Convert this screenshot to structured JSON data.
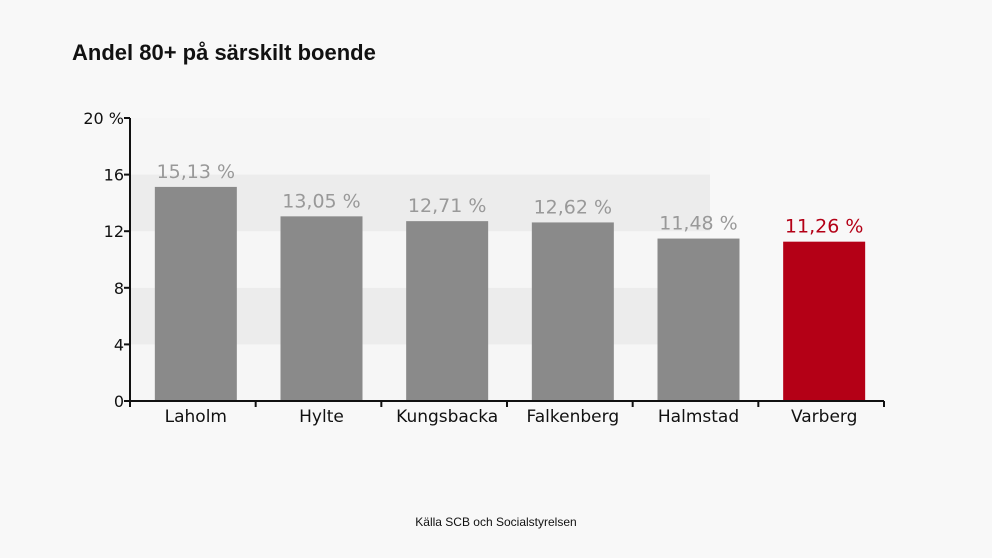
{
  "chart_data": {
    "type": "bar",
    "title": "Andel 80+ på särskilt boende",
    "categories": [
      "Laholm",
      "Hylte",
      "Kungsbacka",
      "Falkenberg",
      "Halmstad",
      "Varberg"
    ],
    "values": [
      15.13,
      13.05,
      12.71,
      12.62,
      11.48,
      11.26
    ],
    "data_labels": [
      "15,13 %",
      "13,05 %",
      "12,71 %",
      "12,62 %",
      "11,48 %",
      "11,26 %"
    ],
    "highlight_index": 5,
    "y_ticks": [
      "0",
      "4",
      "8",
      "12",
      "16",
      "20 %"
    ],
    "y_tick_values": [
      0,
      4,
      8,
      12,
      16,
      20
    ],
    "ylim": [
      0,
      20
    ],
    "xlabel": "",
    "ylabel": "",
    "grid": "alternating bands",
    "legend": "none",
    "colors": {
      "bar": "#8a8a8a",
      "bar_label": "#999999",
      "highlight_bar": "#b40016",
      "highlight_label": "#b40016",
      "axis": "#111111",
      "band_light": "#f6f6f6",
      "band_dark": "#ececec"
    }
  },
  "source": "Källa SCB och Socialstyrelsen"
}
